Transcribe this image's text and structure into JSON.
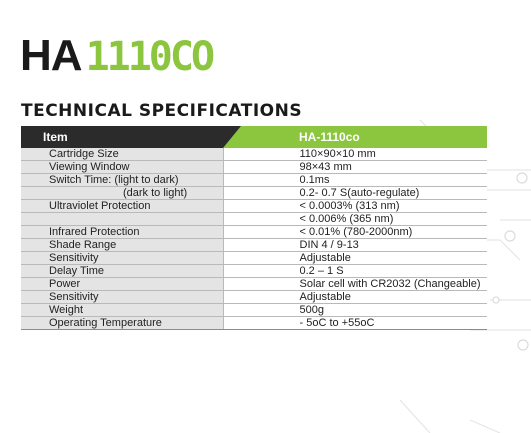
{
  "title": {
    "prefix": "HA",
    "model": "1110CO"
  },
  "subtitle": "TECHNICAL SPECIFICATIONS",
  "table": {
    "header": {
      "item": "Item",
      "model": "HA-1110co"
    },
    "rows": [
      {
        "label": "Cartridge Size",
        "value": "110×90×10 mm",
        "indent": false
      },
      {
        "label": "Viewing Window",
        "value": "98×43 mm",
        "indent": false
      },
      {
        "label": "Switch Time: (light to dark)",
        "value": "0.1ms",
        "indent": false
      },
      {
        "label": "(dark to light)",
        "value": "0.2- 0.7 S(auto-regulate)",
        "indent": true
      },
      {
        "label": "Ultraviolet Protection",
        "value": "< 0.0003% (313 nm)",
        "indent": false
      },
      {
        "label": "",
        "value": "< 0.006% (365 nm)",
        "indent": false
      },
      {
        "label": "Infrared Protection",
        "value": "< 0.01% (780-2000nm)",
        "indent": false
      },
      {
        "label": "Shade Range",
        "value": "DIN 4 / 9-13",
        "indent": false
      },
      {
        "label": "Sensitivity",
        "value": "Adjustable",
        "indent": false
      },
      {
        "label": "Delay Time",
        "value": "0.2 – 1 S",
        "indent": false
      },
      {
        "label": "Power",
        "value": "Solar cell with CR2032 (Changeable)",
        "indent": false
      },
      {
        "label": "Sensitivity",
        "value": "Adjustable",
        "indent": false
      },
      {
        "label": "Weight",
        "value": "500g",
        "indent": false
      },
      {
        "label": "Operating Temperature",
        "value": "- 5oC to +55oC",
        "indent": false
      }
    ]
  },
  "colors": {
    "accent": "#8cc63f",
    "dark": "#2b2b2b",
    "label_bg": "#e4e4e4"
  }
}
